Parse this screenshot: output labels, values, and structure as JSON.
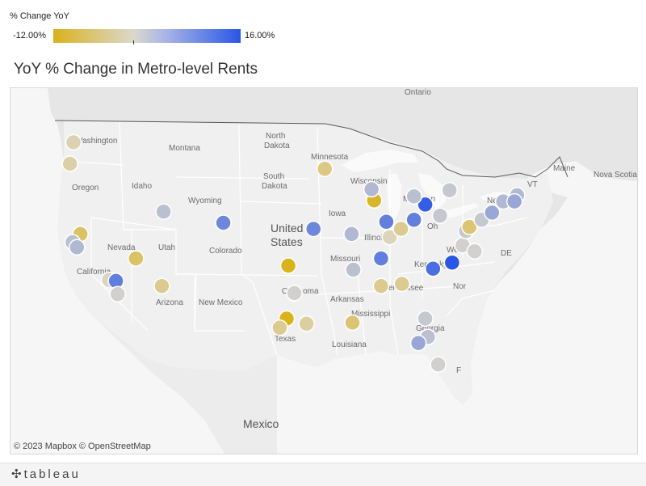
{
  "legend": {
    "title": "% Change YoY",
    "min_label": "-12.00%",
    "max_label": "16.00%",
    "min_value": -12,
    "max_value": 16,
    "color_low": "#d9b21c",
    "color_mid": "#dcd8cc",
    "color_high": "#2a56e6"
  },
  "title": "YoY % Change in Metro-level Rents",
  "attribution": "© 2023 Mapbox  © OpenStreetMap",
  "logo": {
    "text": "tableau",
    "icon": "tableau-plus-icon"
  },
  "map_labels": {
    "washington": "Washington",
    "oregon": "Oregon",
    "montana": "Montana",
    "idaho": "Idaho",
    "wyoming": "Wyoming",
    "north_dakota_1": "North",
    "north_dakota_2": "Dakota",
    "south_dakota_1": "South",
    "south_dakota_2": "Dakota",
    "minnesota": "Minnesota",
    "wisconsin": "Wisconsin",
    "michigan": "Michigan",
    "iowa": "Iowa",
    "nevada": "Nevada",
    "utah": "Utah",
    "colorado": "Colorado",
    "california": "California",
    "arizona": "Arizona",
    "new_mexico": "New Mexico",
    "united_states_1": "United",
    "united_states_2": "States",
    "illinois": "Illinois",
    "missouri": "Missouri",
    "kentucky": "Kentucky",
    "west": "West",
    "oklahoma": "Oklahoma",
    "arkansas": "Arkansas",
    "tennessee": "Tennessee",
    "mississippi": "Mississippi",
    "georgia": "Georgia",
    "texas": "Texas",
    "louisiana": "Louisiana",
    "ohio": "Oh",
    "new_york": "New York",
    "maine": "Maine",
    "vt": "VT",
    "de": "DE",
    "north_carolina": "Nor",
    "ontario": "Ontario",
    "nova_scotia": "Nova Scotia",
    "mexico": "Mexico",
    "florida": "F"
  },
  "metros": [
    {
      "name": "seattle",
      "lng": -122.3,
      "lat": 47.6,
      "change": -2
    },
    {
      "name": "portland-or",
      "lng": -122.7,
      "lat": 45.5,
      "change": -2.5
    },
    {
      "name": "sacramento",
      "lng": -121.5,
      "lat": 38.6,
      "change": -7
    },
    {
      "name": "san-francisco",
      "lng": -122.4,
      "lat": 37.8,
      "change": 3
    },
    {
      "name": "san-jose",
      "lng": -121.9,
      "lat": 37.3,
      "change": 4
    },
    {
      "name": "los-angeles",
      "lng": -118.2,
      "lat": 34.1,
      "change": -1
    },
    {
      "name": "riverside",
      "lng": -117.4,
      "lat": 34.0,
      "change": 11
    },
    {
      "name": "san-diego",
      "lng": -117.2,
      "lat": 32.7,
      "change": 1
    },
    {
      "name": "las-vegas",
      "lng": -115.1,
      "lat": 36.2,
      "change": -7
    },
    {
      "name": "phoenix",
      "lng": -112.1,
      "lat": 33.5,
      "change": -4
    },
    {
      "name": "salt-lake-city",
      "lng": -111.9,
      "lat": 40.8,
      "change": 3
    },
    {
      "name": "denver",
      "lng": -105.0,
      "lat": 39.7,
      "change": 10
    },
    {
      "name": "oklahoma-city",
      "lng": -97.5,
      "lat": 35.5,
      "change": -12
    },
    {
      "name": "dallas",
      "lng": -96.8,
      "lat": 32.8,
      "change": 1
    },
    {
      "name": "austin",
      "lng": -97.7,
      "lat": 30.3,
      "change": -12
    },
    {
      "name": "san-antonio",
      "lng": -98.5,
      "lat": 29.4,
      "change": -4
    },
    {
      "name": "houston",
      "lng": -95.4,
      "lat": 29.8,
      "change": -3
    },
    {
      "name": "kansas-city",
      "lng": -94.6,
      "lat": 39.1,
      "change": 10
    },
    {
      "name": "minneapolis",
      "lng": -93.3,
      "lat": 45.0,
      "change": -5
    },
    {
      "name": "chicago",
      "lng": -87.6,
      "lat": 41.9,
      "change": -11
    },
    {
      "name": "milwaukee",
      "lng": -87.9,
      "lat": 43.0,
      "change": 4
    },
    {
      "name": "st-louis",
      "lng": -90.2,
      "lat": 38.6,
      "change": 4
    },
    {
      "name": "indianapolis",
      "lng": -86.2,
      "lat": 39.8,
      "change": 11
    },
    {
      "name": "louisville",
      "lng": -85.8,
      "lat": 38.3,
      "change": -1
    },
    {
      "name": "cincinnati",
      "lng": -84.5,
      "lat": 39.1,
      "change": -4
    },
    {
      "name": "columbus",
      "lng": -83.0,
      "lat": 40.0,
      "change": 11
    },
    {
      "name": "cleveland",
      "lng": -81.7,
      "lat": 41.5,
      "change": 15
    },
    {
      "name": "detroit",
      "lng": -83.0,
      "lat": 42.3,
      "change": 3
    },
    {
      "name": "pittsburgh",
      "lng": -80.0,
      "lat": 40.4,
      "change": 2
    },
    {
      "name": "buffalo",
      "lng": -78.9,
      "lat": 42.9,
      "change": 2
    },
    {
      "name": "nashville",
      "lng": -86.8,
      "lat": 36.2,
      "change": 11
    },
    {
      "name": "memphis",
      "lng": -90.0,
      "lat": 35.1,
      "change": 3
    },
    {
      "name": "birmingham",
      "lng": -86.8,
      "lat": 33.5,
      "change": -4
    },
    {
      "name": "atlanta",
      "lng": -84.4,
      "lat": 33.7,
      "change": -4
    },
    {
      "name": "charlotte",
      "lng": -80.8,
      "lat": 35.2,
      "change": 13
    },
    {
      "name": "raleigh",
      "lng": -78.6,
      "lat": 35.8,
      "change": 16
    },
    {
      "name": "richmond",
      "lng": -77.4,
      "lat": 37.5,
      "change": 1
    },
    {
      "name": "virginia-beach",
      "lng": -76.0,
      "lat": 36.9,
      "change": 1
    },
    {
      "name": "washington-dc",
      "lng": -77.0,
      "lat": 38.9,
      "change": 2
    },
    {
      "name": "baltimore",
      "lng": -76.6,
      "lat": 39.3,
      "change": -6
    },
    {
      "name": "philadelphia",
      "lng": -75.2,
      "lat": 40.0,
      "change": 2
    },
    {
      "name": "new-york",
      "lng": -74.0,
      "lat": 40.7,
      "change": 6
    },
    {
      "name": "hartford",
      "lng": -72.7,
      "lat": 41.8,
      "change": 4
    },
    {
      "name": "boston",
      "lng": -71.1,
      "lat": 42.4,
      "change": 4
    },
    {
      "name": "providence",
      "lng": -71.4,
      "lat": 41.8,
      "change": 6
    },
    {
      "name": "new-orleans",
      "lng": -90.1,
      "lat": 29.9,
      "change": -6
    },
    {
      "name": "jacksonville",
      "lng": -81.7,
      "lat": 30.3,
      "change": 2
    },
    {
      "name": "orlando",
      "lng": -81.4,
      "lat": 28.5,
      "change": 3
    },
    {
      "name": "tampa",
      "lng": -82.5,
      "lat": 27.9,
      "change": 6
    },
    {
      "name": "miami",
      "lng": -80.2,
      "lat": 25.8,
      "change": 1
    }
  ]
}
